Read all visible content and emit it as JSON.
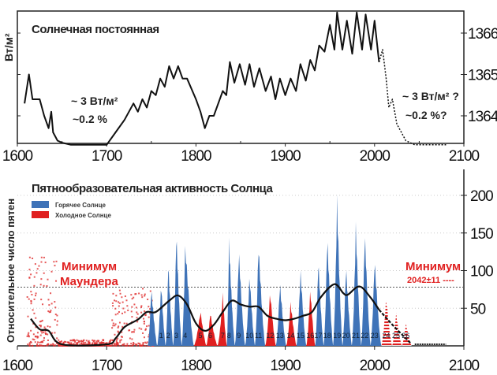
{
  "chart_data": [
    {
      "type": "line",
      "title": "Солнечная постоянная",
      "ylabel": "Вт/м²",
      "xlim": [
        1600,
        2100
      ],
      "ylim": [
        1363.3,
        1366.5
      ],
      "x_ticks": [
        "1600",
        "1700",
        "1800",
        "1900",
        "2000",
        "2100"
      ],
      "y_ticks": [
        "1364",
        "1365",
        "1366"
      ],
      "annotations": [
        "~ 3 Вт/м²",
        "~0.2 %",
        "~ 3 Вт/м² ?",
        "~0.2 %?"
      ],
      "series": [
        {
          "style": "solid",
          "points": [
            [
              1608,
              1364.3
            ],
            [
              1613,
              1365.0
            ],
            [
              1617,
              1364.4
            ],
            [
              1625,
              1364.4
            ],
            [
              1630,
              1364.0
            ],
            [
              1635,
              1363.7
            ],
            [
              1638,
              1364.1
            ],
            [
              1640,
              1363.6
            ],
            [
              1645,
              1363.4
            ],
            [
              1650,
              1363.35
            ],
            [
              1660,
              1363.3
            ],
            [
              1700,
              1363.3
            ],
            [
              1710,
              1363.6
            ],
            [
              1720,
              1363.9
            ],
            [
              1730,
              1364.3
            ],
            [
              1735,
              1364.1
            ],
            [
              1740,
              1364.4
            ],
            [
              1745,
              1364.2
            ],
            [
              1750,
              1364.6
            ],
            [
              1755,
              1364.5
            ],
            [
              1760,
              1364.9
            ],
            [
              1765,
              1364.7
            ],
            [
              1770,
              1365.2
            ],
            [
              1775,
              1364.9
            ],
            [
              1780,
              1365.2
            ],
            [
              1785,
              1364.9
            ],
            [
              1790,
              1364.9
            ],
            [
              1800,
              1364.4
            ],
            [
              1805,
              1364.1
            ],
            [
              1810,
              1363.7
            ],
            [
              1815,
              1364.0
            ],
            [
              1820,
              1364.0
            ],
            [
              1830,
              1364.6
            ],
            [
              1834,
              1364.5
            ],
            [
              1838,
              1365.3
            ],
            [
              1843,
              1364.8
            ],
            [
              1849,
              1365.25
            ],
            [
              1855,
              1364.75
            ],
            [
              1860,
              1365.25
            ],
            [
              1865,
              1364.7
            ],
            [
              1871,
              1365.15
            ],
            [
              1878,
              1364.6
            ],
            [
              1884,
              1364.95
            ],
            [
              1889,
              1364.4
            ],
            [
              1894,
              1364.9
            ],
            [
              1900,
              1364.5
            ],
            [
              1906,
              1364.9
            ],
            [
              1912,
              1364.6
            ],
            [
              1917,
              1365.25
            ],
            [
              1923,
              1364.85
            ],
            [
              1928,
              1365.35
            ],
            [
              1933,
              1365.1
            ],
            [
              1938,
              1365.7
            ],
            [
              1944,
              1365.55
            ],
            [
              1950,
              1366.2
            ],
            [
              1955,
              1365.6
            ],
            [
              1958,
              1366.5
            ],
            [
              1964,
              1365.6
            ],
            [
              1969,
              1366.3
            ],
            [
              1975,
              1365.5
            ],
            [
              1980,
              1366.5
            ],
            [
              1986,
              1365.6
            ],
            [
              1990,
              1366.45
            ],
            [
              1996,
              1365.6
            ],
            [
              2000,
              1366.3
            ],
            [
              2005,
              1365.3
            ]
          ]
        },
        {
          "style": "dashed",
          "points": [
            [
              2005,
              1365.3
            ],
            [
              2009,
              1365.6
            ],
            [
              2013,
              1364.9
            ],
            [
              2016,
              1364.2
            ],
            [
              2020,
              1364.4
            ],
            [
              2025,
              1363.8
            ],
            [
              2030,
              1363.6
            ],
            [
              2035,
              1363.4
            ],
            [
              2045,
              1363.3
            ],
            [
              2080,
              1363.3
            ]
          ]
        }
      ]
    },
    {
      "type": "area",
      "title": "Пятнообразовательная активность Солнца",
      "ylabel": "Относительное число пятен",
      "xlim": [
        1600,
        2100
      ],
      "ylim": [
        0,
        230
      ],
      "x_ticks": [
        "1600",
        "1700",
        "1800",
        "1900",
        "2000",
        "2100"
      ],
      "y_ticks": [
        "50",
        "100",
        "150",
        "200"
      ],
      "reference_line": 78,
      "legend": {
        "placement": "top-left",
        "items": [
          {
            "label": "Горячее Солнце",
            "color": "#3f73b8"
          },
          {
            "label": "Холодное Солнце",
            "color": "#e02020"
          }
        ]
      },
      "annotations": [
        "Минимум",
        "Маундера",
        "Минимум",
        "2042±11 ----"
      ],
      "cycles": [
        {
          "n": "",
          "peak_year": 1750,
          "peak": 80,
          "kind": "hot"
        },
        {
          "n": "1",
          "peak_year": 1761,
          "peak": 86,
          "kind": "hot"
        },
        {
          "n": "2",
          "peak_year": 1769,
          "peak": 115,
          "kind": "hot"
        },
        {
          "n": "3",
          "peak_year": 1778,
          "peak": 158,
          "kind": "hot"
        },
        {
          "n": "4",
          "peak_year": 1788,
          "peak": 141,
          "kind": "hot"
        },
        {
          "n": "5",
          "peak_year": 1805,
          "peak": 49,
          "kind": "cold"
        },
        {
          "n": "6",
          "peak_year": 1816,
          "peak": 46,
          "kind": "cold"
        },
        {
          "n": "7",
          "peak_year": 1830,
          "peak": 71,
          "kind": "cold"
        },
        {
          "n": "8",
          "peak_year": 1837,
          "peak": 146,
          "kind": "hot"
        },
        {
          "n": "9",
          "peak_year": 1848,
          "peak": 132,
          "kind": "hot"
        },
        {
          "n": "10",
          "peak_year": 1860,
          "peak": 98,
          "kind": "hot"
        },
        {
          "n": "11",
          "peak_year": 1870,
          "peak": 140,
          "kind": "hot"
        },
        {
          "n": "12",
          "peak_year": 1883,
          "peak": 75,
          "kind": "cold"
        },
        {
          "n": "13",
          "peak_year": 1894,
          "peak": 88,
          "kind": "hot"
        },
        {
          "n": "14",
          "peak_year": 1906,
          "peak": 60,
          "kind": "cold"
        },
        {
          "n": "15",
          "peak_year": 1917,
          "peak": 105,
          "kind": "hot"
        },
        {
          "n": "16",
          "peak_year": 1928,
          "peak": 78,
          "kind": "cold"
        },
        {
          "n": "17",
          "peak_year": 1937,
          "peak": 119,
          "kind": "hot"
        },
        {
          "n": "18",
          "peak_year": 1947,
          "peak": 152,
          "kind": "hot"
        },
        {
          "n": "19",
          "peak_year": 1958,
          "peak": 201,
          "kind": "hot"
        },
        {
          "n": "20",
          "peak_year": 1968,
          "peak": 111,
          "kind": "hot"
        },
        {
          "n": "21",
          "peak_year": 1979,
          "peak": 165,
          "kind": "hot"
        },
        {
          "n": "22",
          "peak_year": 1989,
          "peak": 159,
          "kind": "hot"
        },
        {
          "n": "23",
          "peak_year": 2000,
          "peak": 121,
          "kind": "hot"
        },
        {
          "n": "24",
          "peak_year": 2013,
          "peak": 67,
          "kind": "forecast"
        },
        {
          "n": "25",
          "peak_year": 2024,
          "peak": 46,
          "kind": "forecast"
        },
        {
          "n": "26",
          "peak_year": 2035,
          "peak": 32,
          "kind": "forecast"
        }
      ],
      "smoothed": [
        [
          1615,
          36
        ],
        [
          1625,
          22
        ],
        [
          1635,
          20
        ],
        [
          1650,
          2
        ],
        [
          1700,
          2
        ],
        [
          1710,
          10
        ],
        [
          1720,
          25
        ],
        [
          1735,
          35
        ],
        [
          1745,
          45
        ],
        [
          1755,
          45
        ],
        [
          1770,
          60
        ],
        [
          1780,
          67
        ],
        [
          1790,
          55
        ],
        [
          1800,
          30
        ],
        [
          1810,
          20
        ],
        [
          1820,
          28
        ],
        [
          1830,
          45
        ],
        [
          1840,
          60
        ],
        [
          1850,
          55
        ],
        [
          1860,
          52
        ],
        [
          1870,
          52
        ],
        [
          1880,
          40
        ],
        [
          1890,
          36
        ],
        [
          1900,
          34
        ],
        [
          1910,
          36
        ],
        [
          1920,
          40
        ],
        [
          1930,
          45
        ],
        [
          1940,
          65
        ],
        [
          1955,
          82
        ],
        [
          1965,
          70
        ],
        [
          1970,
          68
        ],
        [
          1983,
          79
        ],
        [
          1995,
          65
        ],
        [
          2005,
          48
        ]
      ],
      "smoothed_forecast": [
        [
          2005,
          48
        ],
        [
          2020,
          28
        ],
        [
          2040,
          4
        ]
      ]
    }
  ]
}
